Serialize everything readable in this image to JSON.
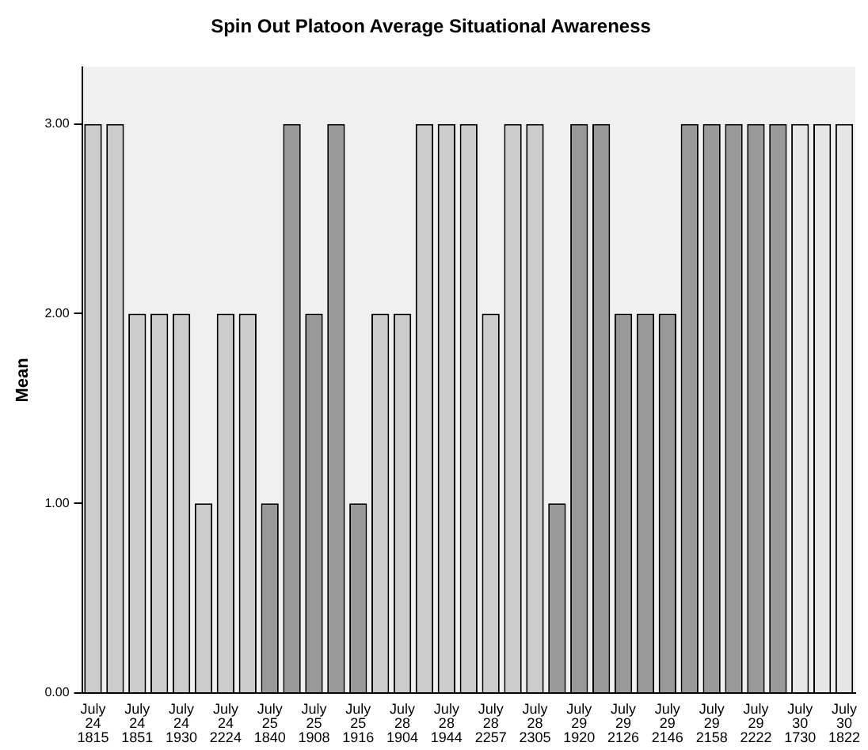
{
  "chart_data": {
    "type": "bar",
    "title": "Spin Out Platoon Average Situational Awareness",
    "ylabel": "Mean",
    "categories": [
      "July\n24\n1815",
      null,
      "July\n24\n1851",
      null,
      "July\n24\n1930",
      null,
      "July\n24\n2224",
      null,
      "July\n25\n1840",
      null,
      "July\n25\n1908",
      null,
      "July\n25\n1916",
      null,
      "July\n28\n1904",
      null,
      "July\n28\n1944",
      null,
      "July\n28\n2257",
      null,
      "July\n28\n2305",
      null,
      "July\n29\n1920",
      null,
      "July\n29\n2126",
      null,
      "July\n29\n2146",
      null,
      "July\n29\n2158",
      null,
      "July\n29\n2222",
      null,
      "July\n30\n1730",
      null,
      "July\n30\n1822"
    ],
    "values": [
      3,
      3,
      2,
      2,
      2,
      1,
      2,
      2,
      1,
      3,
      2,
      3,
      1,
      2,
      2,
      3,
      3,
      3,
      2,
      3,
      3,
      1,
      3,
      3,
      2,
      2,
      2,
      3,
      3,
      3,
      3,
      3,
      3,
      3,
      3
    ],
    "colors": [
      "#cccccc",
      "#cccccc",
      "#cccccc",
      "#cccccc",
      "#cccccc",
      "#cccccc",
      "#cccccc",
      "#cccccc",
      "#999999",
      "#999999",
      "#999999",
      "#999999",
      "#999999",
      "#cccccc",
      "#cccccc",
      "#cccccc",
      "#cccccc",
      "#cccccc",
      "#cccccc",
      "#cccccc",
      "#cccccc",
      "#999999",
      "#999999",
      "#999999",
      "#999999",
      "#999999",
      "#999999",
      "#999999",
      "#999999",
      "#999999",
      "#999999",
      "#999999",
      "#e6e6e6",
      "#e6e6e6",
      "#e6e6e6"
    ],
    "ylim": [
      0,
      3.3
    ],
    "yticks": [
      {
        "value": 0,
        "label": "0.00"
      },
      {
        "value": 1,
        "label": "1.00"
      },
      {
        "value": 2,
        "label": "2.00"
      },
      {
        "value": 3,
        "label": "3.00"
      }
    ],
    "grid": false,
    "legend": false
  }
}
